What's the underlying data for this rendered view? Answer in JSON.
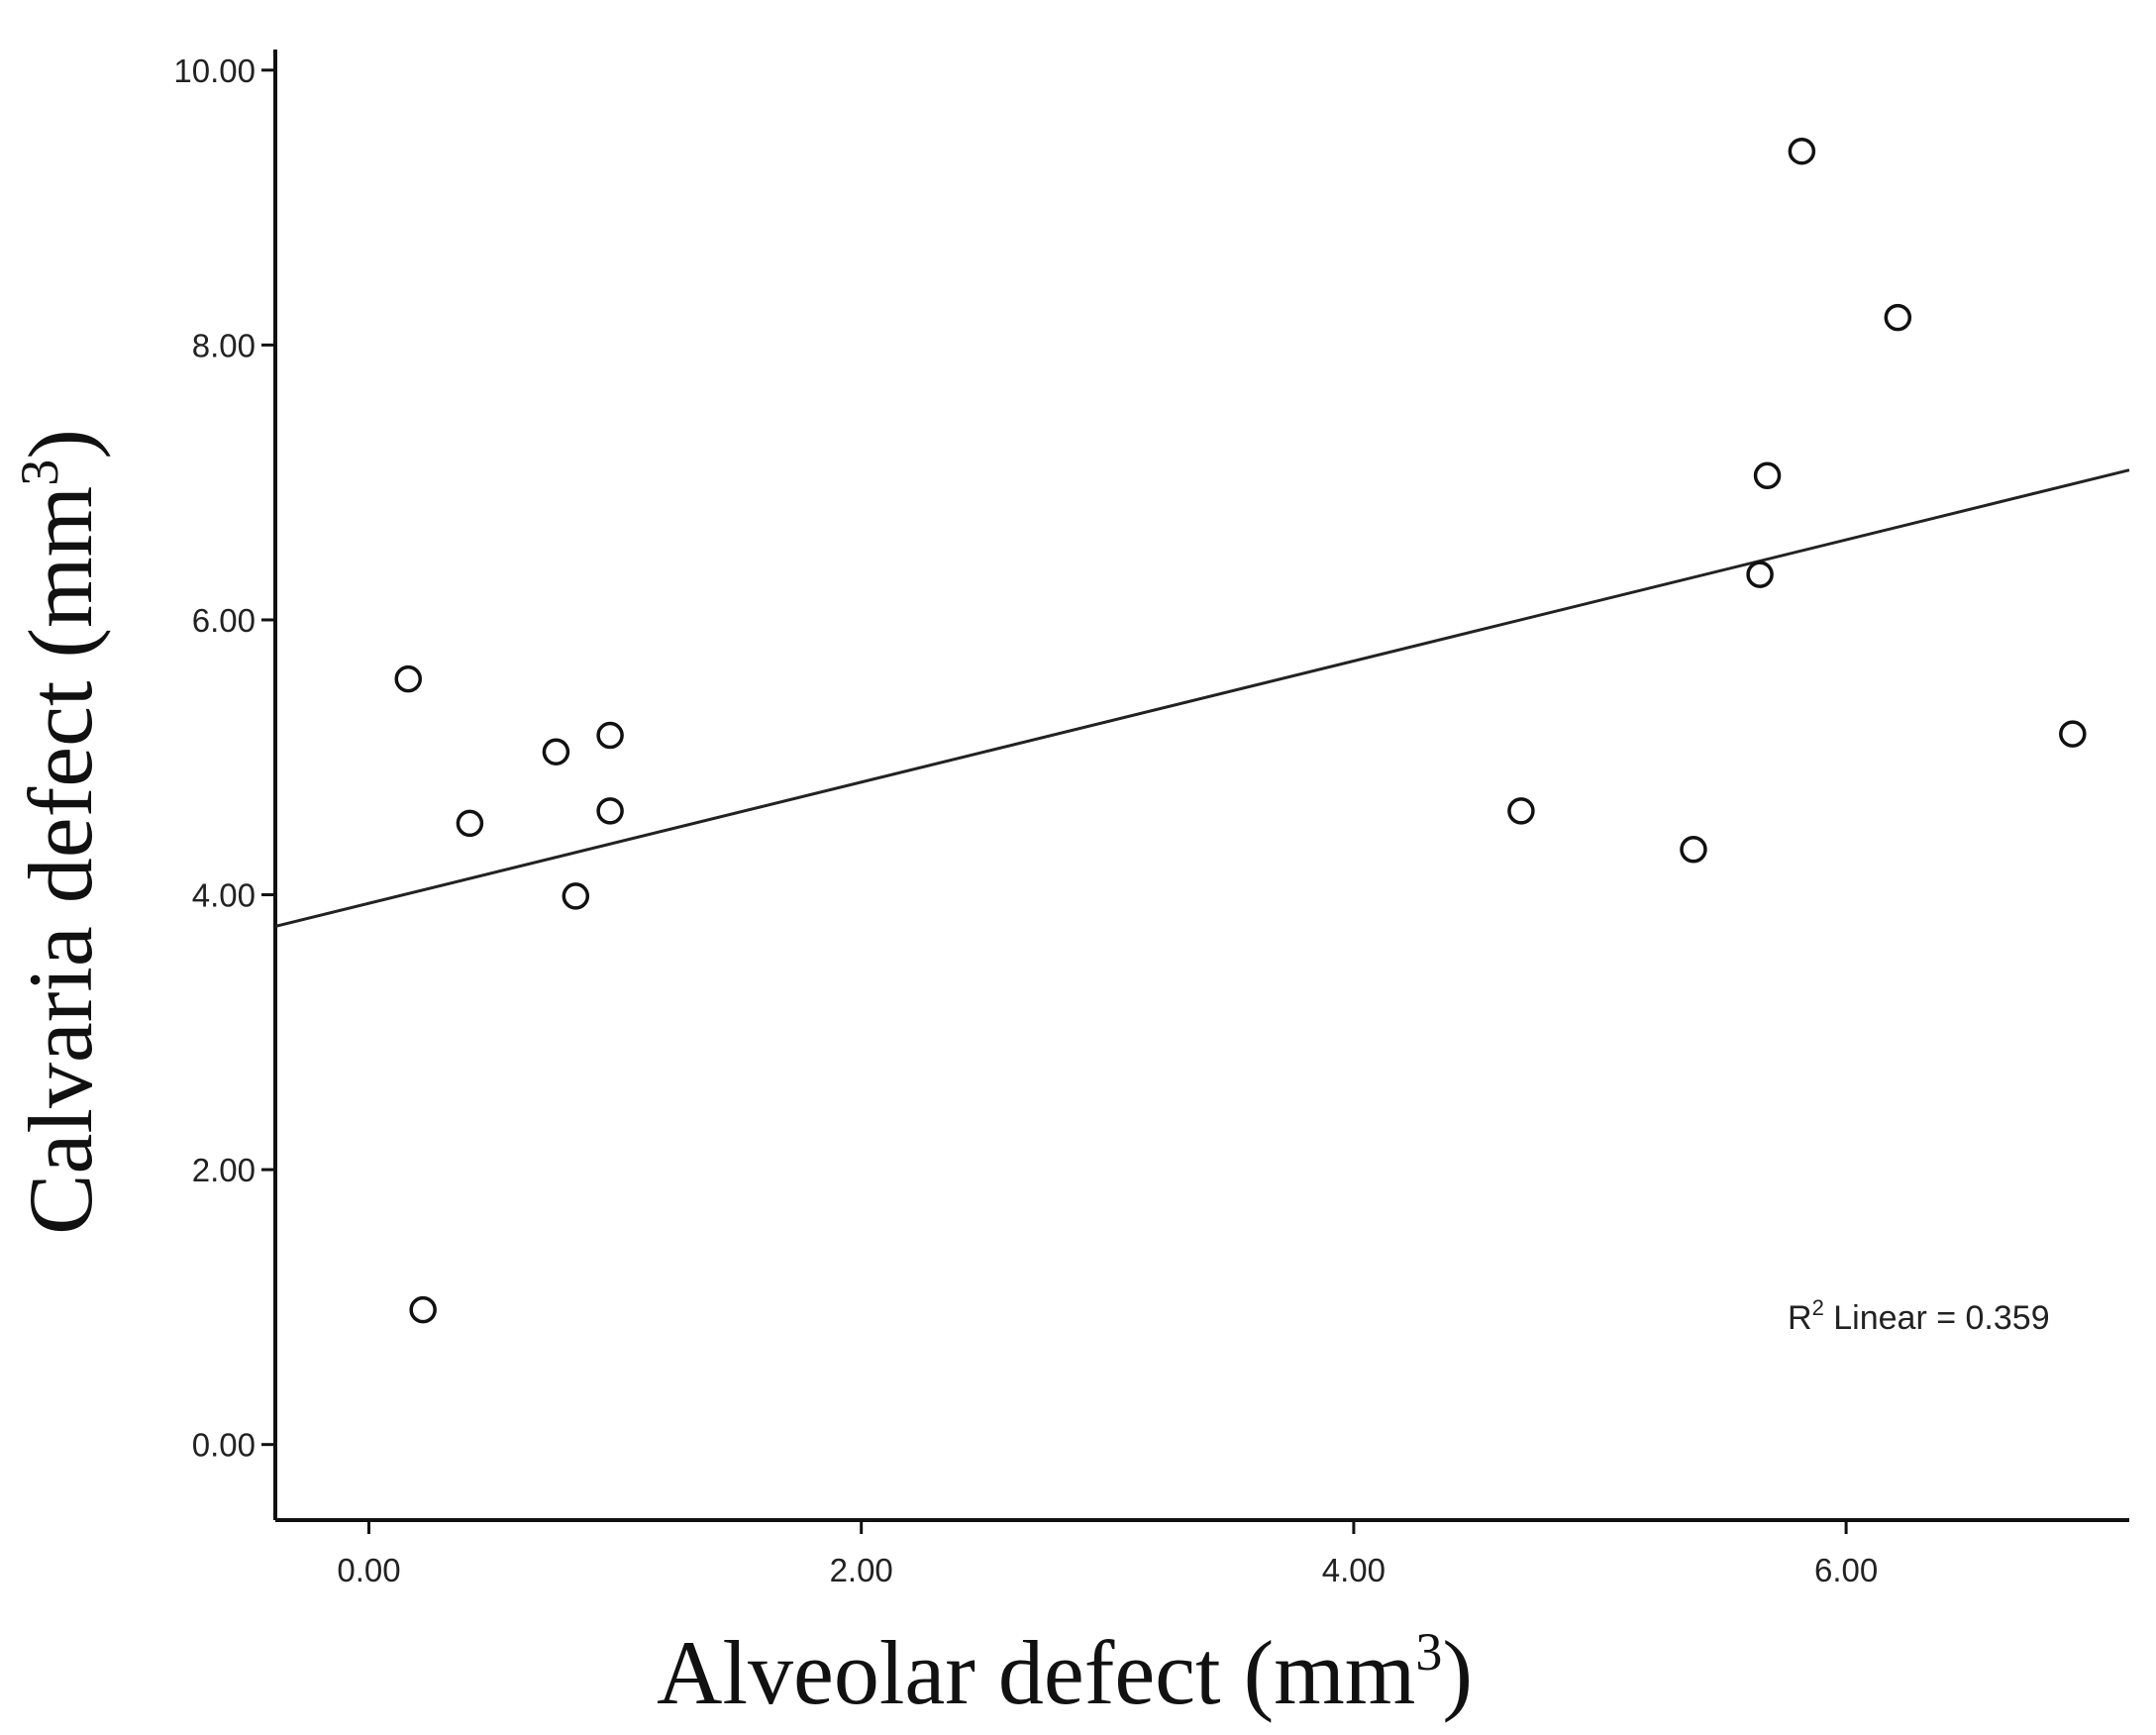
{
  "chart_data": {
    "type": "scatter",
    "title": "",
    "xlabel": "Alveolar defect (mm",
    "xlabel_sup": "3",
    "xlabel_close": ")",
    "ylabel": "Calvaria defect (mm",
    "ylabel_sup": "3",
    "ylabel_close": ")",
    "xlim": [
      -0.38,
      7.15
    ],
    "ylim": [
      -0.55,
      10.15
    ],
    "xticks": [
      0,
      2,
      4,
      6
    ],
    "xtick_labels": [
      "0.00",
      "2.00",
      "4.00",
      "6.00"
    ],
    "yticks": [
      0,
      2,
      4,
      6,
      8,
      10
    ],
    "ytick_labels": [
      "0.00",
      "2.00",
      "4.00",
      "6.00",
      "8.00",
      "10.00"
    ],
    "grid": false,
    "points": [
      {
        "x": 0.16,
        "y": 5.57
      },
      {
        "x": 0.22,
        "y": 0.98
      },
      {
        "x": 0.41,
        "y": 4.52
      },
      {
        "x": 0.76,
        "y": 5.04
      },
      {
        "x": 0.84,
        "y": 3.99
      },
      {
        "x": 0.98,
        "y": 5.16
      },
      {
        "x": 0.98,
        "y": 4.61
      },
      {
        "x": 4.68,
        "y": 4.61
      },
      {
        "x": 5.38,
        "y": 4.33
      },
      {
        "x": 5.65,
        "y": 6.33
      },
      {
        "x": 5.68,
        "y": 7.05
      },
      {
        "x": 5.82,
        "y": 9.41
      },
      {
        "x": 6.21,
        "y": 8.2
      },
      {
        "x": 6.92,
        "y": 5.17
      }
    ],
    "fit_line": {
      "x": [
        -0.38,
        7.15
      ],
      "y": [
        3.77,
        7.09
      ]
    },
    "annotation": {
      "r_label": "R",
      "r_sup": "2",
      "text": " Linear = 0.359"
    }
  }
}
